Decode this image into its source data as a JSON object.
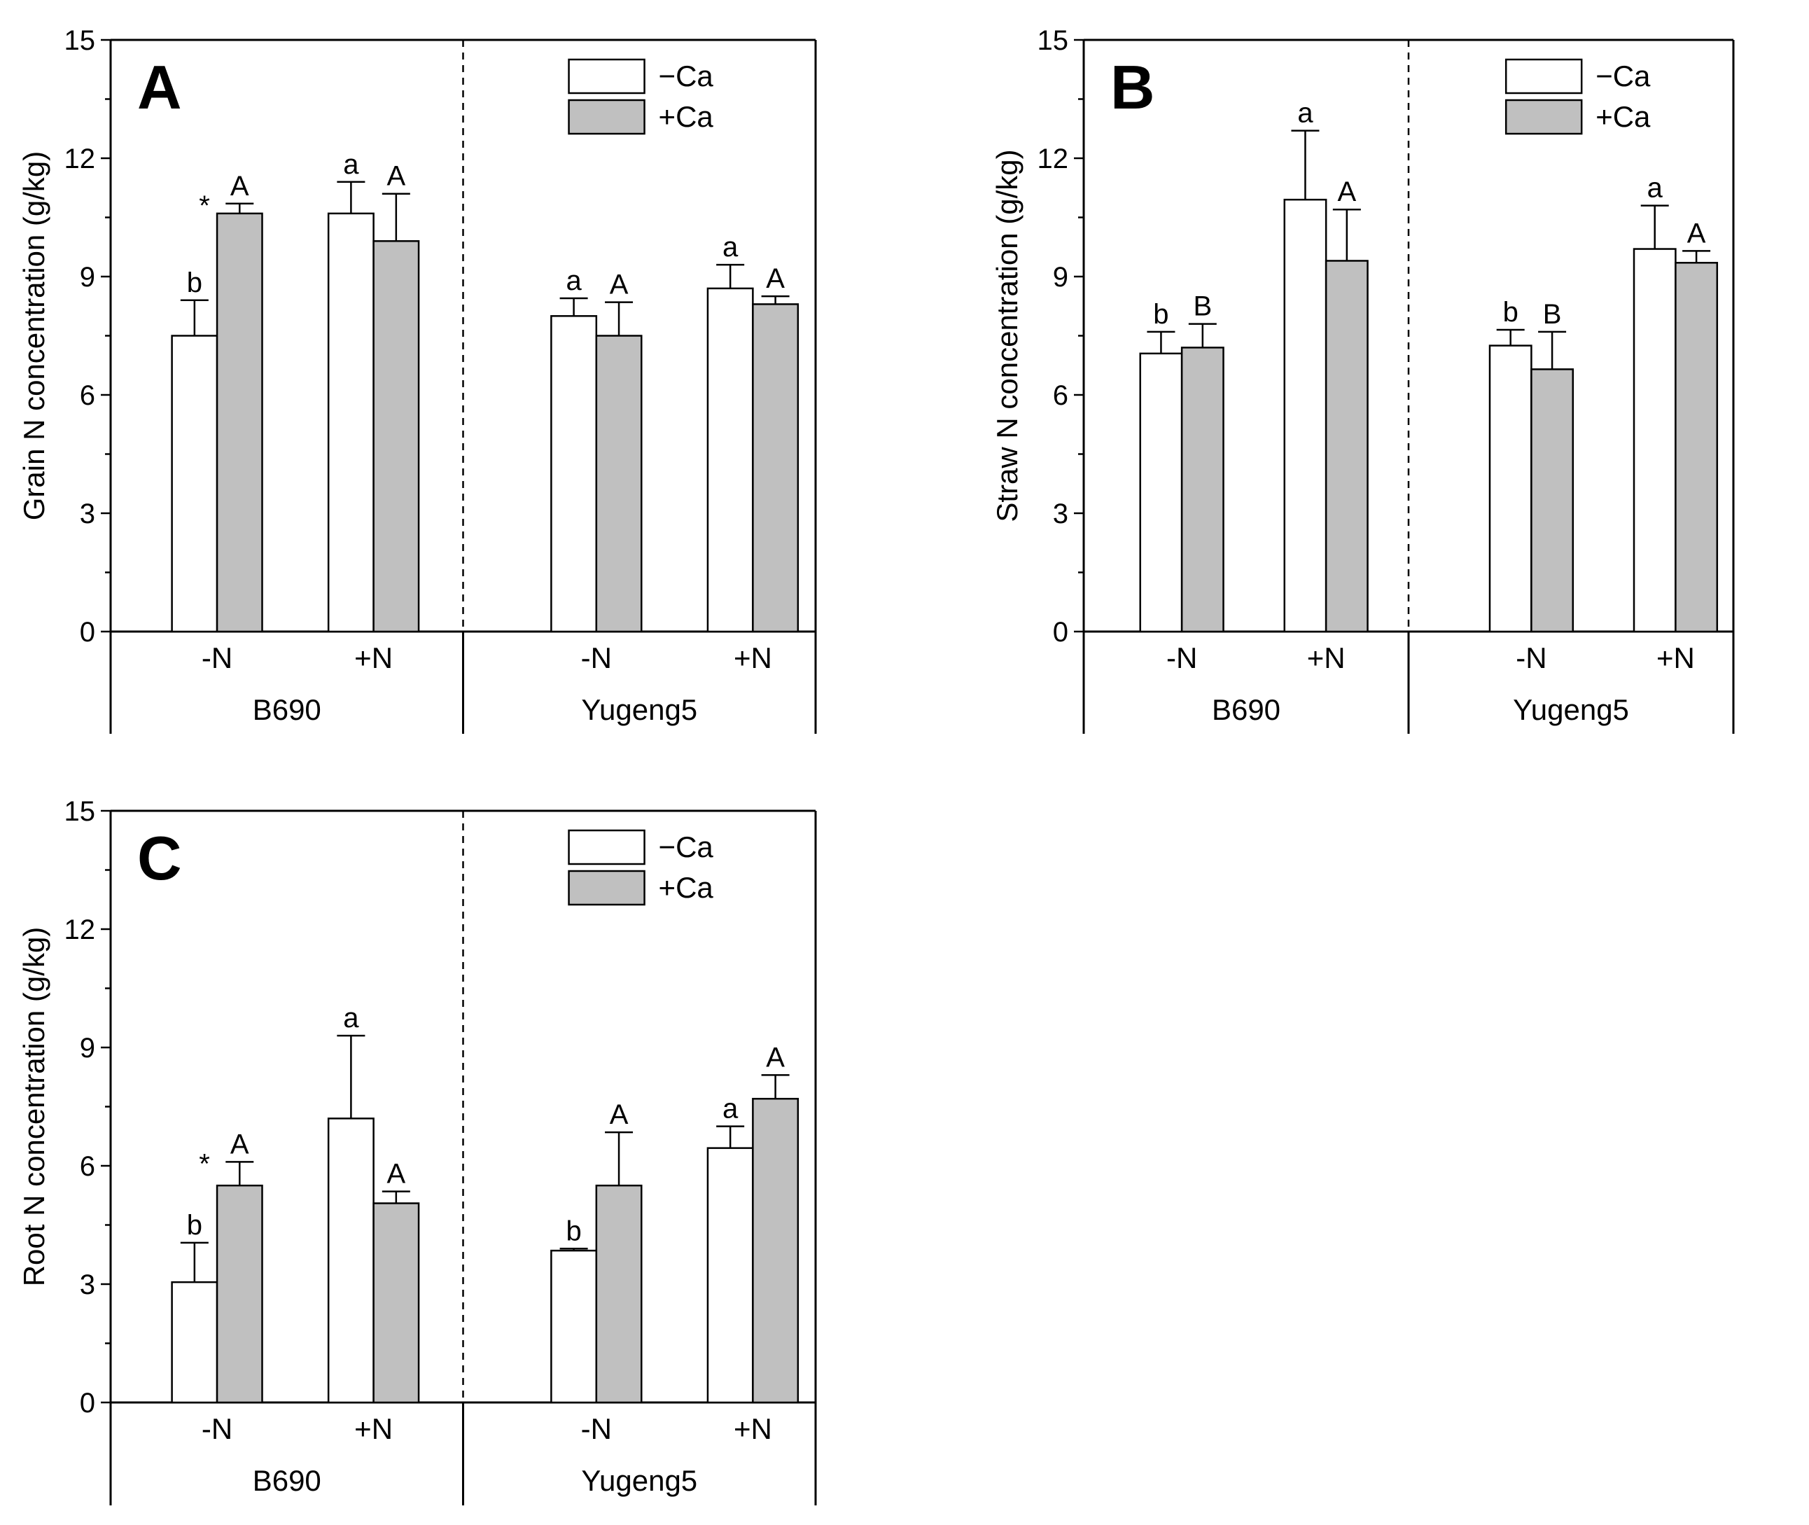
{
  "legend": {
    "minus_ca": "−Ca",
    "plus_ca": "+Ca"
  },
  "colors": {
    "minus_ca_fill": "#ffffff",
    "plus_ca_fill": "#c0c0c0",
    "stroke": "#000000"
  },
  "groups": [
    "B690",
    "Yugeng5"
  ],
  "categories": [
    "-N",
    "+N"
  ],
  "chart_data": [
    {
      "type": "bar",
      "panel": "A",
      "ylabel": "Grain N concentration (g/kg)",
      "ylim": [
        0,
        15
      ],
      "yticks": [
        "0",
        "3",
        "6",
        "9",
        "12",
        "15"
      ],
      "series": [
        {
          "name": "−Ca",
          "values": [
            7.5,
            10.6,
            8.0,
            8.7
          ],
          "errors": [
            0.9,
            0.8,
            0.45,
            0.6
          ],
          "labels": [
            "b",
            "a",
            "a",
            "a"
          ],
          "stars": [
            "",
            "",
            "",
            ""
          ]
        },
        {
          "name": "+Ca",
          "values": [
            10.6,
            9.9,
            7.5,
            8.3
          ],
          "errors": [
            0.25,
            1.2,
            0.85,
            0.2
          ],
          "labels": [
            "A",
            "A",
            "A",
            "A"
          ],
          "stars": [
            "*",
            "",
            "",
            ""
          ]
        }
      ]
    },
    {
      "type": "bar",
      "panel": "B",
      "ylabel": "Straw N concentration (g/kg)",
      "ylim": [
        0,
        15
      ],
      "yticks": [
        "0",
        "3",
        "6",
        "9",
        "12",
        "15"
      ],
      "series": [
        {
          "name": "−Ca",
          "values": [
            7.05,
            10.95,
            7.25,
            9.7
          ],
          "errors": [
            0.55,
            1.75,
            0.4,
            1.1
          ],
          "labels": [
            "b",
            "a",
            "b",
            "a"
          ],
          "stars": [
            "",
            "",
            "",
            ""
          ]
        },
        {
          "name": "+Ca",
          "values": [
            7.2,
            9.4,
            6.65,
            9.35
          ],
          "errors": [
            0.6,
            1.3,
            0.95,
            0.3
          ],
          "labels": [
            "B",
            "A",
            "B",
            "A"
          ],
          "stars": [
            "",
            "",
            "",
            ""
          ]
        }
      ]
    },
    {
      "type": "bar",
      "panel": "C",
      "ylabel": "Root N concentration (g/kg)",
      "ylim": [
        0,
        15
      ],
      "yticks": [
        "0",
        "3",
        "6",
        "9",
        "12",
        "15"
      ],
      "series": [
        {
          "name": "−Ca",
          "values": [
            3.05,
            7.2,
            3.85,
            6.45
          ],
          "errors": [
            1.0,
            2.1,
            0.05,
            0.55
          ],
          "labels": [
            "b",
            "a",
            "b",
            "a"
          ],
          "stars": [
            "",
            "",
            "",
            ""
          ]
        },
        {
          "name": "+Ca",
          "values": [
            5.5,
            5.05,
            5.5,
            7.7
          ],
          "errors": [
            0.6,
            0.3,
            1.35,
            0.6
          ],
          "labels": [
            "A",
            "A",
            "A",
            "A"
          ],
          "stars": [
            "*",
            "",
            "",
            ""
          ]
        }
      ]
    }
  ]
}
